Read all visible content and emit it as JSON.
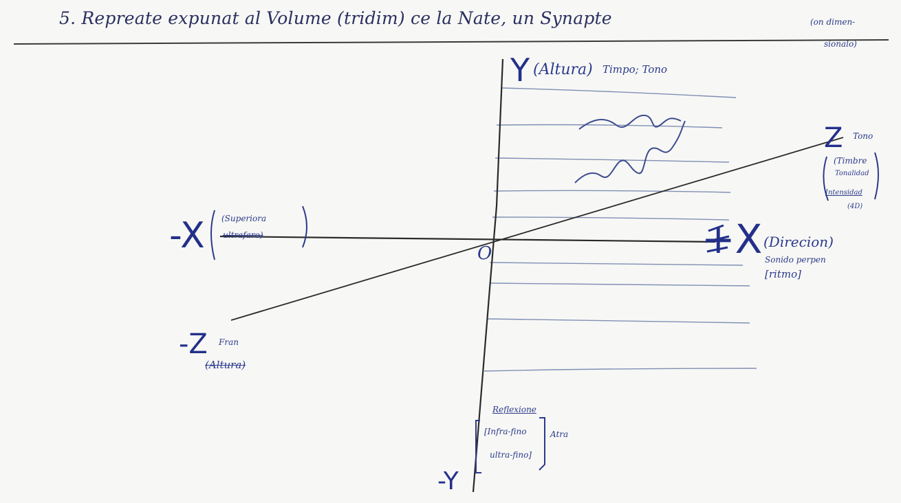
{
  "title": "5. Repreate expunat al Volume (tridim) ce la Nate, un Synapte",
  "title_tail": "(on dimen-",
  "title_tail2": "sionalo)",
  "axes": {
    "y_pos": {
      "symbol": "Y",
      "paren": "(Altura)",
      "extra": "Timpo; Tono"
    },
    "y_neg": {
      "symbol": "-Y",
      "line1": "Reflexione",
      "line2": "[Infra-fino",
      "line3": "ultra-fino]",
      "extra": "Atra"
    },
    "x_pos": {
      "symbol": "+X",
      "line1": "(Direcion)",
      "line2": "Sonido perpen",
      "line3": "[ritmo]"
    },
    "x_neg": {
      "symbol": "-X",
      "line1": "(Superiora",
      "line2": "ultrafaro)"
    },
    "z_pos": {
      "symbol": "Z",
      "extra": "Tono",
      "line1": "(Timbre",
      "line2": "Tonalidad",
      "line3": "Intensidad",
      "line4": "(4D)"
    },
    "z_neg": {
      "symbol": "-Z",
      "extra": "Fran",
      "line1": "(Altura)"
    },
    "origin": "O"
  }
}
